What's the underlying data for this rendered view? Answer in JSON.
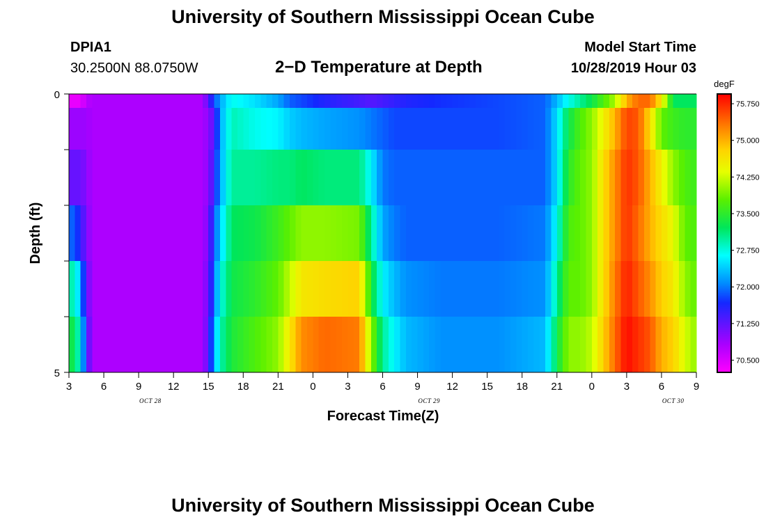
{
  "header": {
    "main_title": "University of Southern Mississippi Ocean Cube",
    "station_id": "DPIA1",
    "station_coords": "30.2500N 88.0750W",
    "plot_title": "2−D Temperature at Depth",
    "model_start_label": "Model Start Time",
    "model_start_value": "10/28/2019 Hour 03"
  },
  "footer": {
    "main_title": "University of Southern Mississippi Ocean Cube"
  },
  "chart_data": {
    "type": "heatmap",
    "title": "2−D Temperature at Depth",
    "xlabel": "Forecast Time(Z)",
    "ylabel": "Depth (ft)",
    "colorbar_label": "degF",
    "ylim": [
      0,
      5
    ],
    "y_tick_labels": [
      "0",
      "5"
    ],
    "x_tick_labels": [
      "3",
      "6",
      "9",
      "12",
      "15",
      "18",
      "21",
      "0",
      "3",
      "6",
      "9",
      "12",
      "15",
      "18",
      "21",
      "0",
      "3",
      "6",
      "9"
    ],
    "date_labels": [
      {
        "text": "OCT 28",
        "hour": 10
      },
      {
        "text": "OCT 29",
        "hour": 34
      },
      {
        "text": "OCT 30",
        "hour": 55
      }
    ],
    "x_start_hour": 3,
    "x_end_hour": 57,
    "value_range": [
      70.25,
      75.95
    ],
    "colorbar_ticks": [
      "75.750",
      "75.000",
      "74.250",
      "73.500",
      "72.750",
      "72.000",
      "71.250",
      "70.500"
    ],
    "depth_layers": [
      0.0,
      0.5,
      1.5,
      2.5,
      3.5,
      4.5
    ],
    "time_keys": [
      3,
      3.5,
      4,
      4.5,
      5,
      9,
      14.5,
      15,
      15.5,
      16,
      17,
      19,
      21,
      22,
      23,
      25,
      28,
      29,
      30,
      31,
      32,
      35,
      40,
      44,
      45,
      46,
      47,
      48,
      49,
      50,
      51,
      52,
      53,
      54,
      55,
      56,
      57
    ],
    "temperature_degF": [
      [
        70.4,
        70.4,
        70.4,
        70.7,
        70.8,
        70.8,
        70.8,
        71.3,
        71.8,
        72.2,
        72.7,
        72.5,
        72.2,
        71.9,
        71.8,
        71.6,
        71.4,
        71.3,
        71.4,
        71.5,
        71.6,
        71.7,
        71.8,
        71.9,
        72.3,
        72.7,
        73.0,
        73.3,
        73.7,
        74.1,
        75.0,
        75.4,
        75.4,
        74.6,
        73.2,
        73.2,
        73.2
      ],
      [
        70.9,
        70.9,
        70.9,
        70.9,
        70.8,
        70.8,
        70.8,
        71.0,
        71.3,
        72.2,
        72.9,
        72.7,
        72.6,
        72.4,
        72.3,
        72.2,
        72.1,
        72.0,
        71.9,
        71.8,
        71.8,
        71.8,
        71.8,
        71.9,
        72.5,
        73.3,
        73.7,
        74.0,
        74.5,
        75.0,
        75.6,
        75.5,
        74.7,
        73.8,
        73.6,
        73.5,
        73.5
      ],
      [
        71.2,
        71.2,
        71.2,
        71.0,
        70.8,
        70.8,
        70.8,
        71.0,
        71.5,
        72.2,
        73.0,
        73.0,
        73.1,
        73.1,
        73.2,
        73.1,
        73.1,
        72.6,
        72.0,
        71.9,
        71.9,
        71.9,
        71.9,
        71.9,
        72.5,
        73.5,
        73.8,
        74.0,
        74.7,
        75.2,
        75.7,
        75.5,
        75.0,
        74.5,
        74.0,
        73.7,
        73.6
      ],
      [
        71.9,
        71.9,
        71.5,
        71.1,
        70.8,
        70.8,
        70.8,
        71.1,
        71.8,
        72.4,
        73.2,
        73.3,
        73.6,
        73.8,
        74.0,
        74.0,
        73.9,
        73.0,
        72.2,
        72.0,
        71.9,
        71.9,
        71.9,
        72.0,
        72.7,
        73.7,
        73.8,
        74.0,
        74.7,
        75.2,
        75.7,
        75.4,
        75.0,
        74.7,
        74.4,
        73.8,
        73.7
      ],
      [
        72.9,
        72.9,
        72.2,
        71.3,
        70.8,
        70.8,
        70.8,
        71.2,
        71.9,
        72.7,
        73.3,
        73.5,
        73.8,
        74.2,
        74.6,
        74.7,
        74.8,
        73.4,
        72.6,
        72.3,
        72.1,
        72.0,
        72.0,
        72.1,
        73.0,
        73.8,
        73.8,
        74.0,
        74.7,
        75.3,
        75.8,
        75.5,
        75.2,
        74.8,
        74.6,
        74.0,
        73.8
      ],
      [
        73.3,
        73.3,
        72.6,
        71.5,
        70.8,
        70.8,
        70.8,
        71.3,
        72.2,
        72.9,
        73.4,
        73.7,
        74.0,
        74.6,
        75.2,
        75.4,
        75.3,
        74.0,
        73.0,
        72.6,
        72.3,
        72.1,
        72.1,
        72.3,
        73.3,
        74.0,
        74.0,
        74.2,
        74.8,
        75.4,
        75.9,
        75.7,
        75.5,
        75.0,
        74.8,
        74.3,
        74.0
      ]
    ]
  }
}
